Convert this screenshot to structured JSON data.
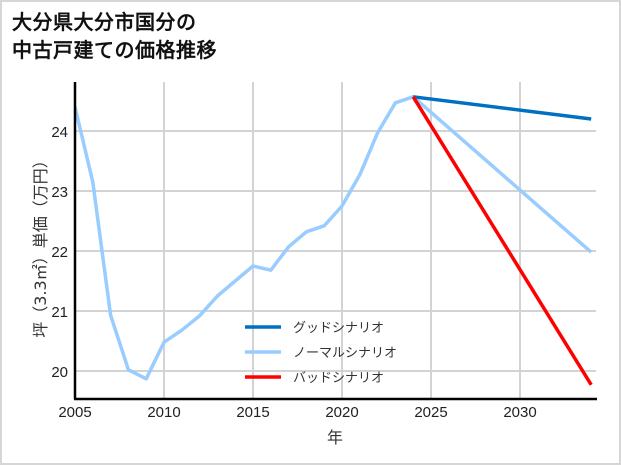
{
  "title": {
    "line1": "大分県大分市国分の",
    "line2": "中古戸建ての価格推移"
  },
  "axes": {
    "xlabel": "年",
    "ylabel": "坪（3.3㎡）単価（万円）",
    "xticks": [
      "2005",
      "2010",
      "2015",
      "2020",
      "2025",
      "2030"
    ],
    "yticks": [
      "20",
      "21",
      "22",
      "23",
      "24"
    ]
  },
  "legend": {
    "items": [
      {
        "label": "グッドシナリオ",
        "color": "#0070c0"
      },
      {
        "label": "ノーマルシナリオ",
        "color": "#99ccff"
      },
      {
        "label": "バッドシナリオ",
        "color": "#ff0000"
      }
    ]
  },
  "chart_data": {
    "type": "line",
    "title": "大分県大分市国分の中古戸建ての価格推移",
    "xlabel": "年",
    "ylabel": "坪（3.3㎡）単価（万円）",
    "xlim": [
      2005,
      2034
    ],
    "ylim": [
      19.55,
      24.8
    ],
    "grid": true,
    "legend_position": "lower center inside",
    "series": [
      {
        "name": "ノーマルシナリオ",
        "color": "#99ccff",
        "x": [
          2005,
          2006,
          2007,
          2008,
          2009,
          2010,
          2011,
          2012,
          2013,
          2014,
          2015,
          2016,
          2017,
          2018,
          2019,
          2020,
          2021,
          2022,
          2023,
          2024,
          2034
        ],
        "values": [
          24.4,
          23.15,
          20.93,
          20.02,
          19.87,
          20.48,
          20.68,
          20.92,
          21.25,
          21.5,
          21.75,
          21.68,
          22.07,
          22.32,
          22.42,
          22.75,
          23.27,
          23.97,
          24.47,
          24.57,
          21.98
        ]
      },
      {
        "name": "グッドシナリオ",
        "color": "#0070c0",
        "x": [
          2024,
          2034
        ],
        "values": [
          24.57,
          24.2
        ]
      },
      {
        "name": "バッドシナリオ",
        "color": "#ff0000",
        "x": [
          2024,
          2034
        ],
        "values": [
          24.57,
          19.77
        ]
      }
    ]
  }
}
